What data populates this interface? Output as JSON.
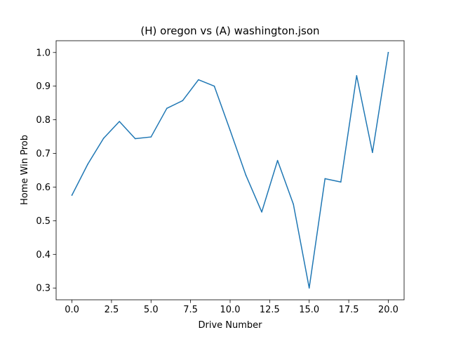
{
  "chart_data": {
    "type": "line",
    "title": "(H) oregon vs (A) washington.json",
    "xlabel": "Drive Number",
    "ylabel": "Home Win Prob",
    "xlim": [
      -1.0,
      21.0
    ],
    "ylim": [
      0.265,
      1.035
    ],
    "xticks": [
      0,
      2.5,
      5,
      7.5,
      10,
      12.5,
      15,
      17.5,
      20
    ],
    "xtick_labels": [
      "0.0",
      "2.5",
      "5.0",
      "7.5",
      "10.0",
      "12.5",
      "15.0",
      "17.5",
      "20.0"
    ],
    "yticks": [
      0.3,
      0.4,
      0.5,
      0.6,
      0.7,
      0.8,
      0.9,
      1.0
    ],
    "ytick_labels": [
      "0.3",
      "0.4",
      "0.5",
      "0.6",
      "0.7",
      "0.8",
      "0.9",
      "1.0"
    ],
    "grid": false,
    "series": [
      {
        "color": "#1f77b4",
        "x": [
          0,
          1,
          2,
          3,
          4,
          5,
          6,
          7,
          8,
          9,
          10,
          11,
          12,
          13,
          14,
          15,
          16,
          17,
          18,
          19,
          20
        ],
        "y": [
          0.576,
          0.668,
          0.745,
          0.795,
          0.744,
          0.749,
          0.834,
          0.857,
          0.919,
          0.9,
          0.769,
          0.635,
          0.526,
          0.679,
          0.549,
          0.3,
          0.625,
          0.615,
          0.931,
          0.703,
          1.0
        ]
      }
    ]
  }
}
